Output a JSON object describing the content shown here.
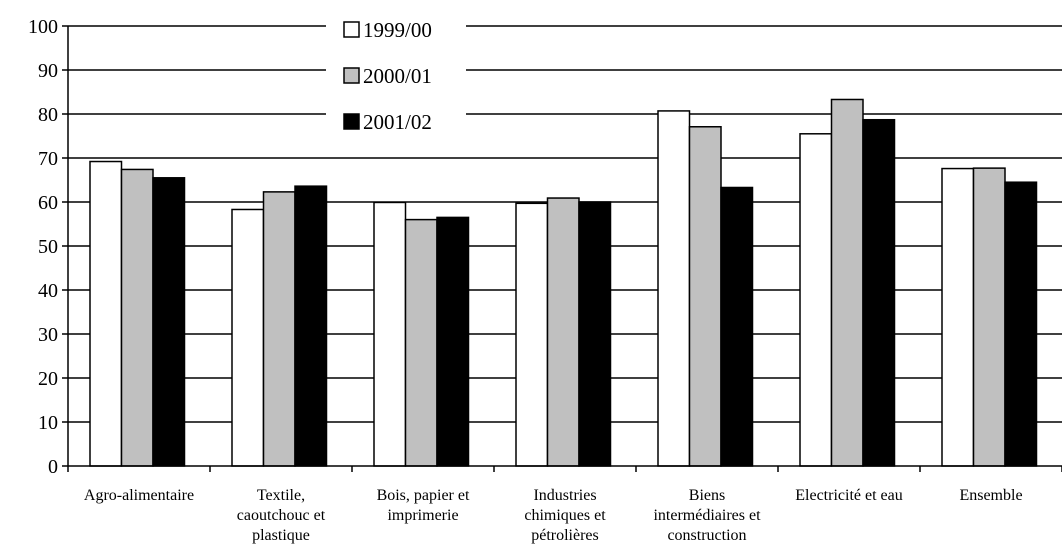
{
  "chart_data": {
    "type": "bar",
    "categories": [
      [
        "Agro-alimentaire"
      ],
      [
        "Textile,",
        "caoutchouc et",
        "plastique"
      ],
      [
        "Bois, papier et",
        "imprimerie"
      ],
      [
        "Industries",
        "chimiques et",
        "pétrolières"
      ],
      [
        "Biens",
        "intermédiaires et",
        "construction"
      ],
      [
        "Electricité et eau"
      ],
      [
        "Ensemble"
      ]
    ],
    "series": [
      {
        "name": "1999/00",
        "color": "#ffffff",
        "values": [
          69.2,
          58.3,
          59.9,
          59.7,
          80.7,
          75.5,
          67.6
        ]
      },
      {
        "name": "2000/01",
        "color": "#c0c0c0",
        "values": [
          67.4,
          62.3,
          56.0,
          60.9,
          77.1,
          83.3,
          67.7
        ]
      },
      {
        "name": "2001/02",
        "color": "#000000",
        "values": [
          65.5,
          63.6,
          56.5,
          60.0,
          63.3,
          78.7,
          64.5
        ]
      }
    ],
    "ylim": [
      0,
      100
    ],
    "yticks": [
      0,
      10,
      20,
      30,
      40,
      50,
      60,
      70,
      80,
      90,
      100
    ],
    "title": "",
    "xlabel": "",
    "ylabel": "",
    "grid": true,
    "legend_position": "top-center"
  }
}
